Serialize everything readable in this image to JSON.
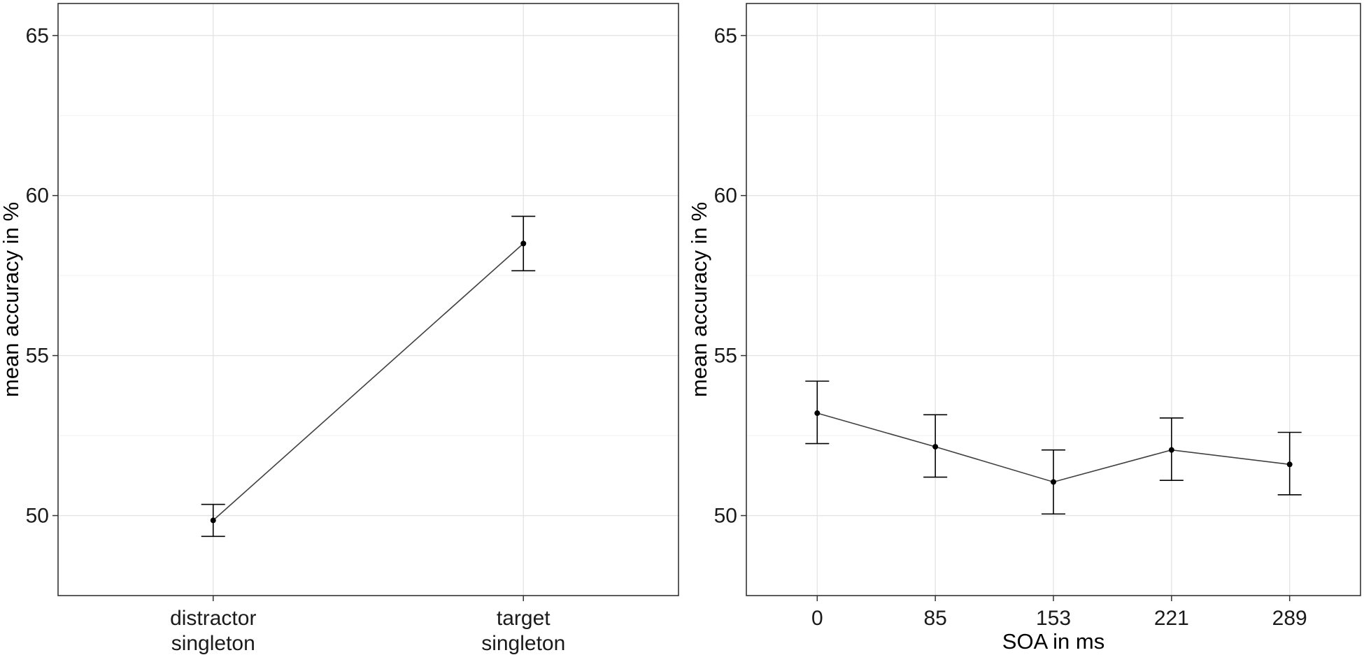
{
  "chart_data": [
    {
      "type": "line",
      "ylabel": "mean accuracy in %",
      "xlabel": "",
      "ylim": [
        47.5,
        66.0
      ],
      "yticks": [
        50,
        55,
        60,
        65
      ],
      "grid": true,
      "categories": [
        [
          "distractor",
          "singleton"
        ],
        [
          "target",
          "singleton"
        ]
      ],
      "series": [
        {
          "values": [
            49.85,
            58.5
          ],
          "error_low": [
            49.35,
            57.65
          ],
          "error_high": [
            50.35,
            59.35
          ]
        }
      ]
    },
    {
      "type": "line",
      "ylabel": "mean accuracy in %",
      "xlabel": "SOA in ms",
      "ylim": [
        47.5,
        66.0
      ],
      "yticks": [
        50,
        55,
        60,
        65
      ],
      "grid": true,
      "categories": [
        [
          "0"
        ],
        [
          "85"
        ],
        [
          "153"
        ],
        [
          "221"
        ],
        [
          "289"
        ]
      ],
      "series": [
        {
          "values": [
            53.2,
            52.15,
            51.05,
            52.05,
            51.6
          ],
          "error_low": [
            52.25,
            51.2,
            50.05,
            51.1,
            50.65
          ],
          "error_high": [
            54.2,
            53.15,
            52.05,
            53.05,
            52.6
          ]
        }
      ]
    }
  ],
  "colors": {
    "line": "#404040",
    "point": "#000000",
    "panel_border": "#333333",
    "grid_major": "#e3e3e3",
    "grid_minor": "#f1f1f1"
  }
}
